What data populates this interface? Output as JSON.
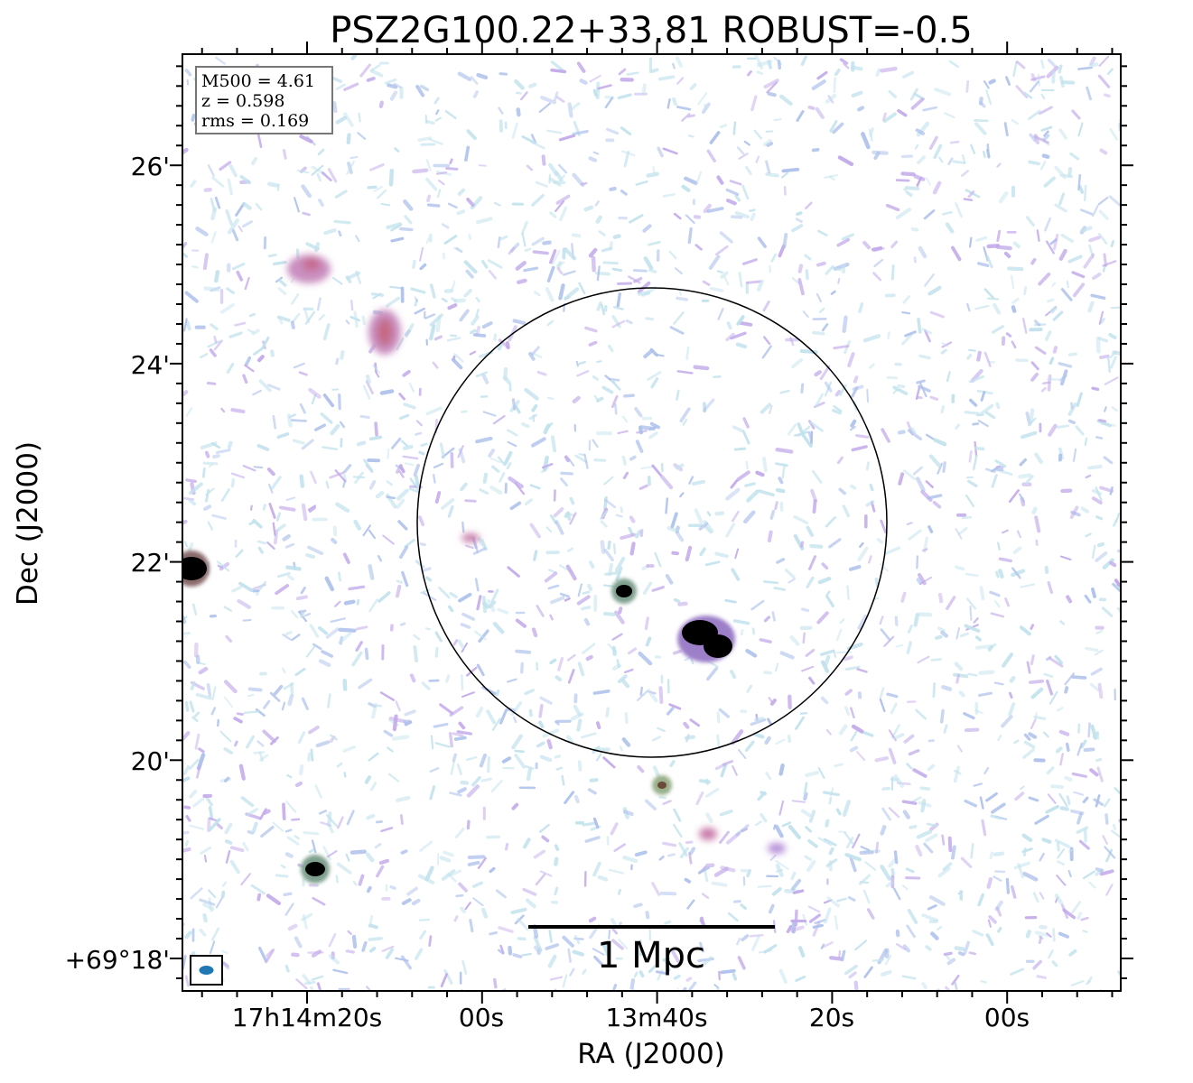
{
  "title": "PSZ2G100.22+33.81 ROBUST=-0.5",
  "info_box": {
    "lines": [
      "M500 = 4.61",
      "z = 0.598",
      "rms = 0.169"
    ]
  },
  "axes": {
    "xlabel": "RA (J2000)",
    "ylabel": "Dec (J2000)",
    "x_ticks": [
      "17h14m20s",
      "00s",
      "13m40s",
      "20s",
      "00s"
    ],
    "y_ticks": [
      "26'",
      "24'",
      "22'",
      "20'",
      "+69°18'"
    ]
  },
  "scalebar": {
    "label": "1 Mpc"
  },
  "colors": {
    "noise_light": "#b7ddea",
    "noise_blue": "#9fb6e8",
    "noise_violet": "#b79ae6",
    "emission_pink": "#c87aa8",
    "source_core": "#000000",
    "beam": "#1f77b4"
  }
}
